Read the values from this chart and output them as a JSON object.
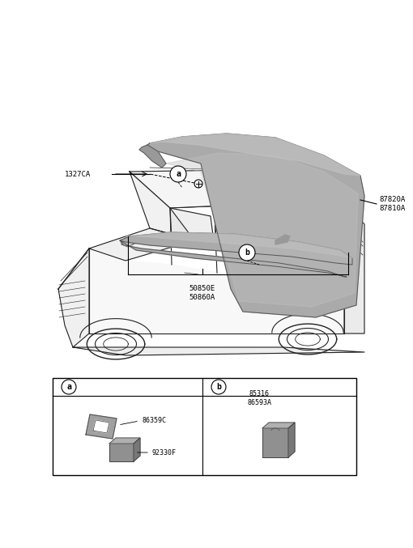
{
  "bg_color": "#ffffff",
  "car_color": "#222222",
  "gray1": "#aaaaaa",
  "gray2": "#c0c0c0",
  "gray3": "#888888",
  "gray4": "#999999",
  "black": "#000000",
  "fs_label": 6.5,
  "fs_small": 6,
  "parts_label_50850E": "50850E\n50860A",
  "parts_label_1327CA": "1327CA",
  "parts_label_87820A": "87820A\n87810A",
  "parts_label_86359C": "86359C",
  "parts_label_92330F": "92330F",
  "parts_label_85316": "85316\n86593A"
}
